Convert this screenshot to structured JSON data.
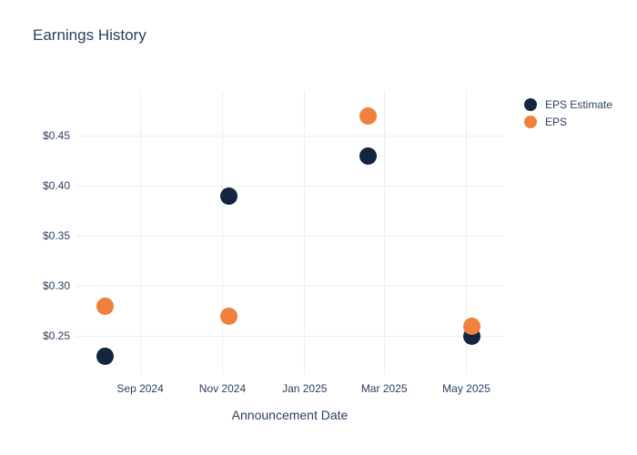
{
  "chart_data": {
    "type": "scatter",
    "title": "Earnings History",
    "xlabel": "Announcement Date",
    "ylabel": "",
    "legend_position": "right-top",
    "grid": true,
    "colors": {
      "text": "#2a3f5f",
      "grid": "#e9eef7",
      "background": "#ffffff",
      "eps_estimate": "#13253f",
      "eps": "#f0813c"
    },
    "x_axis": {
      "range": [
        "2024-07-15",
        "2025-05-29"
      ],
      "ticks": [
        {
          "label": "Sep 2024",
          "date": "2024-09-01"
        },
        {
          "label": "Nov 2024",
          "date": "2024-11-01"
        },
        {
          "label": "Jan 2025",
          "date": "2025-01-01"
        },
        {
          "label": "Mar 2025",
          "date": "2025-03-01"
        },
        {
          "label": "May 2025",
          "date": "2025-05-01"
        }
      ]
    },
    "y_axis": {
      "range": [
        0.212,
        0.495
      ],
      "ticks": [
        {
          "label": "$0.45",
          "value": 0.45
        },
        {
          "label": "$0.40",
          "value": 0.4
        },
        {
          "label": "$0.35",
          "value": 0.35
        },
        {
          "label": "$0.30",
          "value": 0.3
        },
        {
          "label": "$0.25",
          "value": 0.25
        }
      ]
    },
    "series": [
      {
        "name": "EPS Estimate",
        "color": "#13253f",
        "points": [
          {
            "date": "2024-08-06",
            "value": 0.23
          },
          {
            "date": "2024-11-06",
            "value": 0.39
          },
          {
            "date": "2025-02-17",
            "value": 0.43
          },
          {
            "date": "2025-05-05",
            "value": 0.25
          }
        ]
      },
      {
        "name": "EPS",
        "color": "#f0813c",
        "points": [
          {
            "date": "2024-08-06",
            "value": 0.28
          },
          {
            "date": "2024-11-06",
            "value": 0.27
          },
          {
            "date": "2025-02-17",
            "value": 0.47
          },
          {
            "date": "2025-05-05",
            "value": 0.26
          }
        ]
      }
    ]
  }
}
